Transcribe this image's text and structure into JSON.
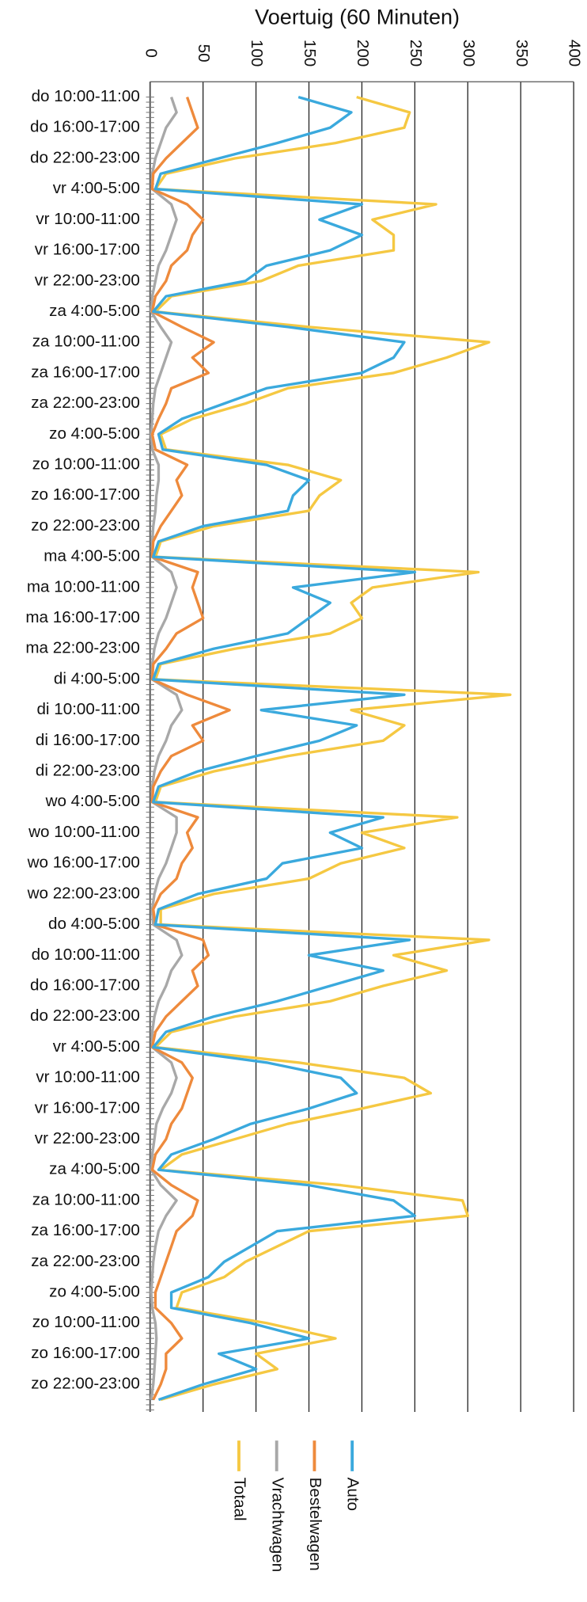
{
  "chart_data": {
    "type": "line",
    "orientation": "horizontal",
    "title": "Voertuig (60 Minuten)",
    "categories": [
      "do 10:00-11:00",
      null,
      "do 16:00-17:00",
      null,
      "do 22:00-23:00",
      null,
      "vr 4:00-5:00",
      null,
      "vr 10:00-11:00",
      null,
      "vr 16:00-17:00",
      null,
      "vr 22:00-23:00",
      null,
      "za 4:00-5:00",
      null,
      "za 10:00-11:00",
      null,
      "za 16:00-17:00",
      null,
      "za 22:00-23:00",
      null,
      "zo 4:00-5:00",
      null,
      "zo 10:00-11:00",
      null,
      "zo 16:00-17:00",
      null,
      "zo 22:00-23:00",
      null,
      "ma 4:00-5:00",
      null,
      "ma 10:00-11:00",
      null,
      "ma 16:00-17:00",
      null,
      "ma 22:00-23:00",
      null,
      "di 4:00-5:00",
      null,
      "di 10:00-11:00",
      null,
      "di 16:00-17:00",
      null,
      "di 22:00-23:00",
      null,
      "wo 4:00-5:00",
      null,
      "wo 10:00-11:00",
      null,
      "wo 16:00-17:00",
      null,
      "wo 22:00-23:00",
      null,
      "do 4:00-5:00",
      null,
      "do 10:00-11:00",
      null,
      "do 16:00-17:00",
      null,
      "do 22:00-23:00",
      null,
      "vr 4:00-5:00",
      null,
      "vr 10:00-11:00",
      null,
      "vr 16:00-17:00",
      null,
      "vr 22:00-23:00",
      null,
      "za 4:00-5:00",
      null,
      "za 10:00-11:00",
      null,
      "za 16:00-17:00",
      null,
      "za 22:00-23:00",
      null,
      "zo 4:00-5:00",
      null,
      "zo 10:00-11:00",
      null,
      "zo 16:00-17:00",
      null,
      "zo 22:00-23:00",
      null
    ],
    "series": [
      {
        "name": "Auto",
        "color": "#3aa9dd",
        "values": [
          140,
          190,
          170,
          120,
          65,
          10,
          5,
          200,
          160,
          200,
          170,
          110,
          90,
          15,
          3,
          130,
          240,
          230,
          200,
          110,
          70,
          30,
          8,
          12,
          110,
          150,
          135,
          130,
          50,
          8,
          3,
          250,
          135,
          170,
          150,
          130,
          60,
          8,
          3,
          240,
          105,
          195,
          160,
          100,
          45,
          8,
          3,
          220,
          170,
          200,
          125,
          110,
          45,
          8,
          5,
          245,
          150,
          220,
          170,
          120,
          60,
          15,
          3,
          110,
          180,
          195,
          150,
          95,
          60,
          20,
          8,
          150,
          230,
          250,
          120,
          95,
          70,
          55,
          20,
          20,
          95,
          150,
          65,
          100,
          50,
          8
        ]
      },
      {
        "name": "Bestelwagen",
        "color": "#ee8a3c",
        "values": [
          35,
          40,
          45,
          30,
          15,
          3,
          2,
          35,
          50,
          40,
          35,
          20,
          15,
          5,
          2,
          30,
          60,
          40,
          55,
          20,
          15,
          8,
          2,
          5,
          35,
          25,
          30,
          20,
          10,
          3,
          2,
          45,
          40,
          45,
          50,
          25,
          15,
          3,
          2,
          35,
          75,
          40,
          50,
          20,
          10,
          3,
          2,
          45,
          35,
          40,
          30,
          25,
          10,
          3,
          5,
          50,
          55,
          40,
          45,
          30,
          15,
          5,
          2,
          30,
          40,
          35,
          30,
          20,
          15,
          5,
          2,
          20,
          45,
          40,
          25,
          20,
          15,
          10,
          5,
          5,
          20,
          30,
          15,
          15,
          10,
          3
        ]
      },
      {
        "name": "Vrachtwagen",
        "color": "#a8a8a8",
        "values": [
          20,
          25,
          15,
          10,
          5,
          2,
          2,
          20,
          25,
          20,
          15,
          8,
          5,
          2,
          1,
          10,
          20,
          15,
          10,
          5,
          3,
          2,
          1,
          2,
          8,
          8,
          6,
          5,
          3,
          2,
          2,
          20,
          25,
          20,
          15,
          8,
          4,
          2,
          2,
          25,
          30,
          20,
          15,
          8,
          4,
          2,
          2,
          25,
          25,
          20,
          15,
          8,
          4,
          2,
          3,
          25,
          30,
          20,
          15,
          8,
          4,
          2,
          2,
          20,
          25,
          20,
          12,
          6,
          4,
          2,
          1,
          10,
          25,
          15,
          8,
          5,
          3,
          2,
          1,
          2,
          5,
          6,
          5,
          4,
          3,
          1
        ]
      },
      {
        "name": "Totaal",
        "color": "#f5c842",
        "values": [
          195,
          245,
          240,
          175,
          80,
          15,
          5,
          270,
          210,
          230,
          230,
          140,
          105,
          20,
          5,
          150,
          320,
          280,
          230,
          130,
          90,
          40,
          10,
          15,
          130,
          180,
          160,
          150,
          60,
          10,
          5,
          310,
          210,
          190,
          200,
          170,
          80,
          10,
          5,
          340,
          190,
          240,
          220,
          130,
          60,
          10,
          5,
          290,
          200,
          240,
          180,
          150,
          60,
          10,
          10,
          320,
          230,
          280,
          220,
          170,
          80,
          20,
          5,
          140,
          240,
          265,
          200,
          130,
          80,
          30,
          10,
          180,
          295,
          300,
          150,
          120,
          90,
          70,
          30,
          25,
          110,
          175,
          100,
          120,
          60,
          10
        ]
      }
    ],
    "xlim": [
      0,
      400
    ],
    "xticks": [
      0,
      50,
      100,
      150,
      200,
      250,
      300,
      350,
      400
    ],
    "grid": true,
    "legend": "bottom"
  }
}
